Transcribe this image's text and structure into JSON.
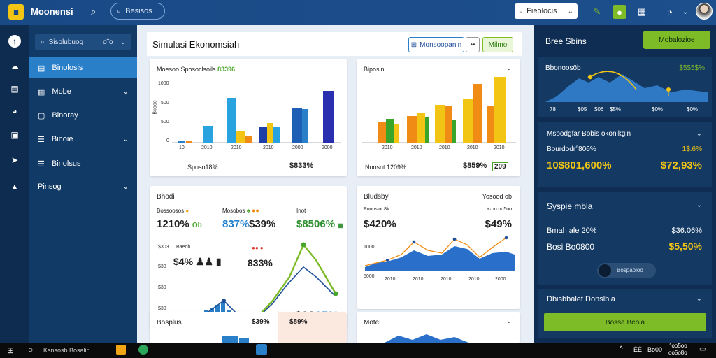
{
  "app": {
    "title": "Moonensi",
    "top_search_placeholder": "Besisos",
    "dropdown_label": "Fieolocis"
  },
  "sidebar": {
    "search_placeholder": "Sisolubuog",
    "search_option": "o˜o",
    "items": [
      {
        "label": "Binolosis",
        "active": true,
        "chevron": false
      },
      {
        "label": "Mobe",
        "active": false,
        "chevron": true
      },
      {
        "label": "Binoray",
        "active": false,
        "chevron": false
      },
      {
        "label": "Binoie",
        "active": false,
        "chevron": true
      },
      {
        "label": "Binolsus",
        "active": false,
        "chevron": false
      },
      {
        "label": "Pinsog",
        "active": false,
        "chevron": true
      }
    ]
  },
  "main": {
    "title": "Simulasi Ekonomsiah",
    "btn_primary": "Monsoopanin",
    "btn_secondary": "••",
    "btn_green": "Milmo",
    "card1": {
      "title": "Moesoo Sposoclsoils",
      "title_value": "83396",
      "yticks": [
        "1000",
        "500",
        "500",
        "0"
      ],
      "ylabel": "Boooo",
      "xticks": [
        "10",
        "2010",
        "2010",
        "2010",
        "2000",
        "2000"
      ],
      "footer_left": "Sposo18%",
      "footer_right": "$833%"
    },
    "card2": {
      "title": "Biposin",
      "xticks": [
        "2010",
        "2010",
        "2010",
        "2010",
        "2010"
      ],
      "footer_left": "Noosnt 1209%",
      "footer_orange": "$859%",
      "footer_green": "209"
    },
    "card3": {
      "title": "Bhodi",
      "m1_label": "Bossoosos",
      "m1_value": "1210%",
      "m1_suffix": "Ob",
      "m2_label": "Mosobos",
      "m2_value": "837%",
      "m3_value": "$39%",
      "m4_label": "Inot",
      "m4_value": "$8506%",
      "yticks": [
        "$303",
        "$30",
        "$30",
        "$30"
      ],
      "row_label": "Baeob",
      "row_value": "$4%",
      "mid_value": "833%",
      "big_value": "$39",
      "big_value_b": "95%"
    },
    "card4": {
      "title": "Bludsby",
      "right_title": "Yosood ob",
      "left_sub": "Poooslot 8k",
      "right_sub": "Y·oo oo5oo",
      "left_value": "$420%",
      "right_value": "$49%",
      "yticks": [
        "1000",
        "5000"
      ],
      "xticks": [
        "2010",
        "2010",
        "2010",
        "2010",
        "2000"
      ]
    },
    "card5": {
      "title": "Bosplus",
      "value_orange": "$39%",
      "value_green": "$89%"
    },
    "card6": {
      "title": "Motel"
    }
  },
  "right": {
    "title": "Bree Sbins",
    "btn": "Mobalozioe",
    "chart_label": "Bbonoosöb",
    "chart_value": "$5$5$%",
    "chart_x": [
      "78",
      "$05",
      "$06",
      "$5%",
      "$0%",
      "$0%"
    ],
    "sec1_title": "Msoodgfar Bobis okonikgin",
    "sec1_row": "Bourdodr°806%",
    "sec1_row_val": "1$.6%",
    "sec1_big_left": "10$801,600%",
    "sec1_big_right": "$72,93%",
    "sec2_title": "Syspie mbla",
    "sec2_r1": "Bmah ale 20%",
    "sec2_r1_val": "$36.06%",
    "sec2_r2": "Bosi Bo0800",
    "sec2_r2_val": "$5,50%",
    "sec2_toggle": "Bospaoloo",
    "sec3_title": "Dbisbbalet Donslbia",
    "sec3_btn": "Bossa Beola"
  },
  "taskbar": {
    "search": "Ksnsosb Bosalin",
    "tray_a": "ÉÉ",
    "tray_b": "Bo00",
    "clock_time": "°oo5oo",
    "clock_date": "oo5o8o"
  },
  "colors": {
    "accent_green": "#7dbb27",
    "accent_blue": "#2a7fc9",
    "yellow": "#f2c515"
  }
}
